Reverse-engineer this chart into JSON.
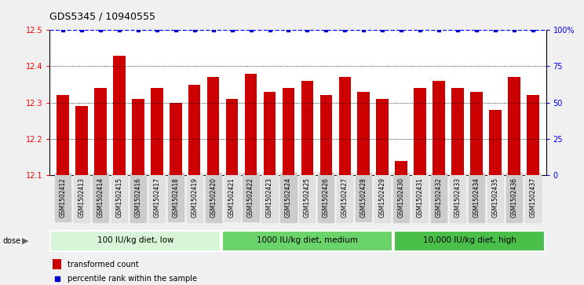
{
  "title": "GDS5345 / 10940555",
  "samples": [
    "GSM1502412",
    "GSM1502413",
    "GSM1502414",
    "GSM1502415",
    "GSM1502416",
    "GSM1502417",
    "GSM1502418",
    "GSM1502419",
    "GSM1502420",
    "GSM1502421",
    "GSM1502422",
    "GSM1502423",
    "GSM1502424",
    "GSM1502425",
    "GSM1502426",
    "GSM1502427",
    "GSM1502428",
    "GSM1502429",
    "GSM1502430",
    "GSM1502431",
    "GSM1502432",
    "GSM1502433",
    "GSM1502434",
    "GSM1502435",
    "GSM1502436",
    "GSM1502437"
  ],
  "values": [
    12.32,
    12.29,
    12.34,
    12.43,
    12.31,
    12.34,
    12.3,
    12.35,
    12.37,
    12.31,
    12.38,
    12.33,
    12.34,
    12.36,
    12.32,
    12.37,
    12.33,
    12.31,
    12.14,
    12.34,
    12.36,
    12.34,
    12.33,
    12.28,
    12.37,
    12.32
  ],
  "bar_color": "#cc0000",
  "percentile_color": "#0000cc",
  "ylim": [
    12.1,
    12.5
  ],
  "yticks": [
    12.1,
    12.2,
    12.3,
    12.4,
    12.5
  ],
  "right_yticks": [
    0,
    25,
    50,
    75,
    100
  ],
  "right_ylabels": [
    "0",
    "25",
    "50",
    "75",
    "100%"
  ],
  "gridlines": [
    12.2,
    12.3,
    12.4
  ],
  "groups": [
    {
      "label": "100 IU/kg diet, low",
      "start": 0,
      "end": 9
    },
    {
      "label": "1000 IU/kg diet, medium",
      "start": 9,
      "end": 18
    },
    {
      "label": "10,000 IU/kg diet, high",
      "start": 18,
      "end": 26
    }
  ],
  "group_colors": [
    "#d8f5d8",
    "#6ad46a",
    "#4abf4a"
  ],
  "dose_label": "dose",
  "legend_bar_label": "transformed count",
  "legend_dot_label": "percentile rank within the sample",
  "fig_bg_color": "#f0f0f0",
  "plot_bg_color": "#ffffff",
  "xtick_bg_even": "#cccccc",
  "xtick_bg_odd": "#e0e0e0"
}
